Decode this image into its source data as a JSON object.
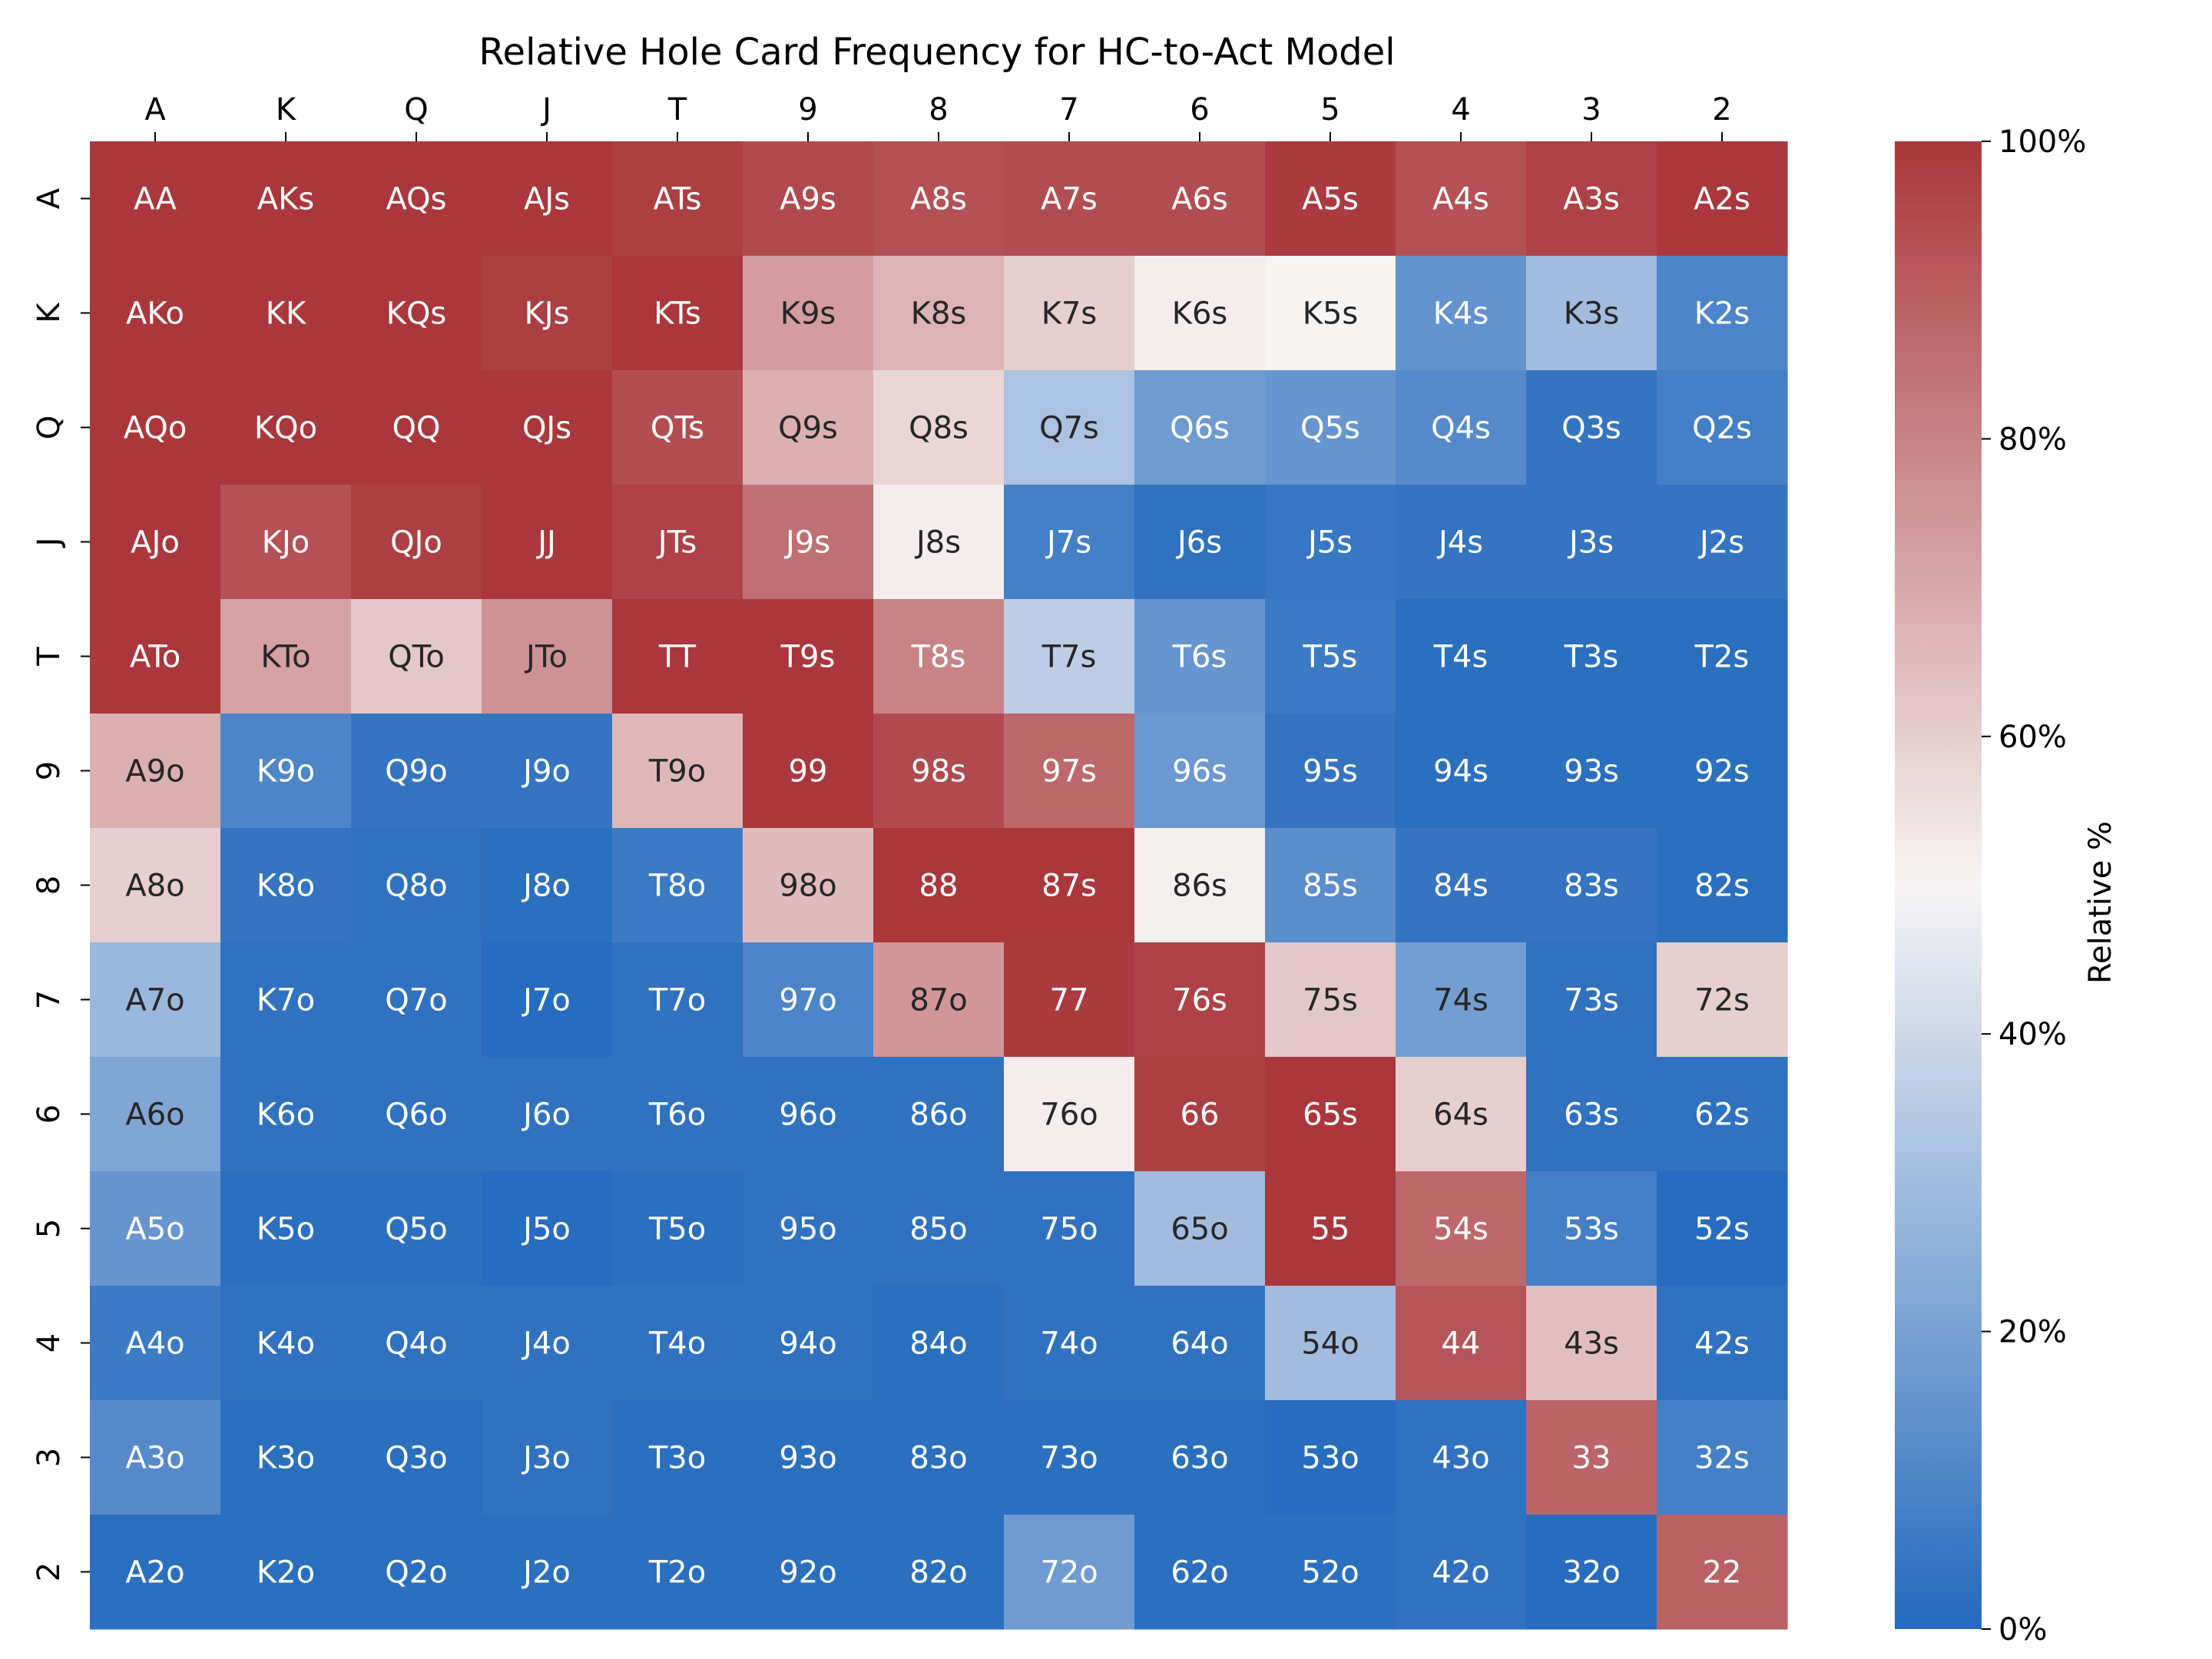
{
  "chart_data": {
    "type": "heatmap",
    "title": "Relative Hole Card Frequency for HC-to-Act Model",
    "x_categories": [
      "A",
      "K",
      "Q",
      "J",
      "T",
      "9",
      "8",
      "7",
      "6",
      "5",
      "4",
      "3",
      "2"
    ],
    "y_categories": [
      "A",
      "K",
      "Q",
      "J",
      "T",
      "9",
      "8",
      "7",
      "6",
      "5",
      "4",
      "3",
      "2"
    ],
    "x_axis_position": "top",
    "cell_labels": [
      [
        "AA",
        "AKs",
        "AQs",
        "AJs",
        "ATs",
        "A9s",
        "A8s",
        "A7s",
        "A6s",
        "A5s",
        "A4s",
        "A3s",
        "A2s"
      ],
      [
        "AKo",
        "KK",
        "KQs",
        "KJs",
        "KTs",
        "K9s",
        "K8s",
        "K7s",
        "K6s",
        "K5s",
        "K4s",
        "K3s",
        "K2s"
      ],
      [
        "AQo",
        "KQo",
        "QQ",
        "QJs",
        "QTs",
        "Q9s",
        "Q8s",
        "Q7s",
        "Q6s",
        "Q5s",
        "Q4s",
        "Q3s",
        "Q2s"
      ],
      [
        "AJo",
        "KJo",
        "QJo",
        "JJ",
        "JTs",
        "J9s",
        "J8s",
        "J7s",
        "J6s",
        "J5s",
        "J4s",
        "J3s",
        "J2s"
      ],
      [
        "ATo",
        "KTo",
        "QTo",
        "JTo",
        "TT",
        "T9s",
        "T8s",
        "T7s",
        "T6s",
        "T5s",
        "T4s",
        "T3s",
        "T2s"
      ],
      [
        "A9o",
        "K9o",
        "Q9o",
        "J9o",
        "T9o",
        "99",
        "98s",
        "97s",
        "96s",
        "95s",
        "94s",
        "93s",
        "92s"
      ],
      [
        "A8o",
        "K8o",
        "Q8o",
        "J8o",
        "T8o",
        "98o",
        "88",
        "87s",
        "86s",
        "85s",
        "84s",
        "83s",
        "82s"
      ],
      [
        "A7o",
        "K7o",
        "Q7o",
        "J7o",
        "T7o",
        "97o",
        "87o",
        "77",
        "76s",
        "75s",
        "74s",
        "73s",
        "72s"
      ],
      [
        "A6o",
        "K6o",
        "Q6o",
        "J6o",
        "T6o",
        "96o",
        "86o",
        "76o",
        "66",
        "65s",
        "64s",
        "63s",
        "62s"
      ],
      [
        "A5o",
        "K5o",
        "Q5o",
        "J5o",
        "T5o",
        "95o",
        "85o",
        "75o",
        "65o",
        "55",
        "54s",
        "53s",
        "52s"
      ],
      [
        "A4o",
        "K4o",
        "Q4o",
        "J4o",
        "T4o",
        "94o",
        "84o",
        "74o",
        "64o",
        "54o",
        "44",
        "43s",
        "42s"
      ],
      [
        "A3o",
        "K3o",
        "Q3o",
        "J3o",
        "T3o",
        "93o",
        "83o",
        "73o",
        "63o",
        "53o",
        "43o",
        "33",
        "32s"
      ],
      [
        "A2o",
        "K2o",
        "Q2o",
        "J2o",
        "T2o",
        "92o",
        "82o",
        "72o",
        "62o",
        "52o",
        "42o",
        "32o",
        "22"
      ]
    ],
    "values": [
      [
        100,
        100,
        100,
        100,
        98,
        95,
        93,
        94,
        94,
        99,
        93,
        97,
        100
      ],
      [
        100,
        100,
        100,
        98,
        100,
        73,
        67,
        60,
        52,
        50,
        15,
        30,
        10
      ],
      [
        100,
        100,
        100,
        100,
        94,
        68,
        58,
        32,
        18,
        16,
        12,
        4,
        8
      ],
      [
        100,
        93,
        98,
        100,
        97,
        85,
        52,
        8,
        3,
        5,
        4,
        4,
        4
      ],
      [
        100,
        72,
        62,
        76,
        100,
        100,
        80,
        36,
        16,
        6,
        2,
        2,
        2
      ],
      [
        68,
        10,
        4,
        4,
        66,
        100,
        95,
        87,
        17,
        4,
        2,
        2,
        2
      ],
      [
        60,
        4,
        3,
        2,
        6,
        65,
        100,
        100,
        51,
        13,
        4,
        4,
        2
      ],
      [
        28,
        3,
        3,
        1,
        3,
        10,
        75,
        99,
        97,
        62,
        19,
        3,
        60
      ],
      [
        22,
        3,
        3,
        3,
        3,
        3,
        3,
        52,
        98,
        100,
        60,
        3,
        3
      ],
      [
        16,
        2,
        2,
        1,
        2,
        3,
        3,
        3,
        30,
        100,
        87,
        8,
        1
      ],
      [
        6,
        3,
        3,
        3,
        3,
        3,
        2,
        3,
        3,
        30,
        92,
        64,
        3
      ],
      [
        12,
        2,
        2,
        3,
        2,
        2,
        2,
        2,
        2,
        1,
        3,
        88,
        8
      ],
      [
        2,
        2,
        2,
        2,
        2,
        2,
        2,
        18,
        2,
        2,
        3,
        1,
        89
      ]
    ],
    "colorbar": {
      "label": "Relative %",
      "min": 0,
      "max": 100,
      "ticks": [
        "0%",
        "20%",
        "40%",
        "60%",
        "80%",
        "100%"
      ],
      "colormap": "vlag",
      "color_low": "#2369BD",
      "color_mid": "#F7F4F4",
      "color_high": "#A9373B"
    },
    "grid": false,
    "legend": "colorbar-right"
  }
}
